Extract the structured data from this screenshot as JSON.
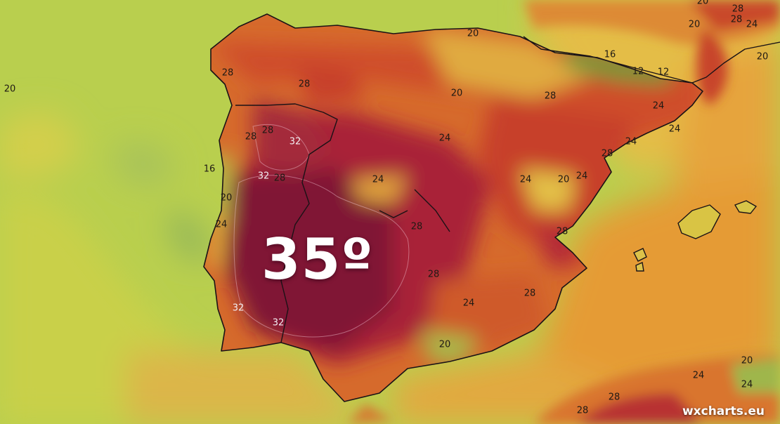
{
  "headline": "35º",
  "watermark": "wxcharts.eu",
  "colors": {
    "sea_cool": "#b9cf4e",
    "sea_mid": "#d6c84a",
    "sea_warm": "#e0a23c",
    "land_green": "#6f9a3a",
    "land_yellow": "#e3c344",
    "land_orange": "#dc7a2e",
    "land_red": "#c0392b",
    "land_crimson": "#9b1f3c",
    "land_darkest": "#6e1033"
  },
  "labels": [
    {
      "text": "20",
      "tone": "dark"
    },
    {
      "text": "20",
      "tone": "dark"
    },
    {
      "text": "28",
      "tone": "dark"
    },
    {
      "text": "20",
      "tone": "dark"
    },
    {
      "text": "24",
      "tone": "dark"
    },
    {
      "text": "20",
      "tone": "dark"
    },
    {
      "text": "28",
      "tone": "dark"
    },
    {
      "text": "16",
      "tone": "dark"
    },
    {
      "text": "12",
      "tone": "dark"
    },
    {
      "text": "12",
      "tone": "dark"
    },
    {
      "text": "20",
      "tone": "dark"
    },
    {
      "text": "28",
      "tone": "dark"
    },
    {
      "text": "28",
      "tone": "dark"
    },
    {
      "text": "20",
      "tone": "dark"
    },
    {
      "text": "28",
      "tone": "dark"
    },
    {
      "text": "24",
      "tone": "dark"
    },
    {
      "text": "24",
      "tone": "dark"
    },
    {
      "text": "28",
      "tone": "dark"
    },
    {
      "text": "28",
      "tone": "dark"
    },
    {
      "text": "32",
      "tone": "light"
    },
    {
      "text": "24",
      "tone": "dark"
    },
    {
      "text": "28",
      "tone": "dark"
    },
    {
      "text": "24",
      "tone": "dark"
    },
    {
      "text": "16",
      "tone": "dark"
    },
    {
      "text": "32",
      "tone": "light"
    },
    {
      "text": "28",
      "tone": "dark"
    },
    {
      "text": "24",
      "tone": "dark"
    },
    {
      "text": "24",
      "tone": "dark"
    },
    {
      "text": "20",
      "tone": "dark"
    },
    {
      "text": "24",
      "tone": "dark"
    },
    {
      "text": "20",
      "tone": "dark"
    },
    {
      "text": "24",
      "tone": "dark"
    },
    {
      "text": "28",
      "tone": "dark"
    },
    {
      "text": "28",
      "tone": "dark"
    },
    {
      "text": "28",
      "tone": "dark"
    },
    {
      "text": "32",
      "tone": "light"
    },
    {
      "text": "24",
      "tone": "dark"
    },
    {
      "text": "32",
      "tone": "light"
    },
    {
      "text": "20",
      "tone": "dark"
    },
    {
      "text": "20",
      "tone": "dark"
    },
    {
      "text": "24",
      "tone": "dark"
    },
    {
      "text": "24",
      "tone": "dark"
    },
    {
      "text": "28",
      "tone": "dark"
    },
    {
      "text": "28",
      "tone": "dark"
    },
    {
      "text": "28",
      "tone": "dark"
    }
  ]
}
